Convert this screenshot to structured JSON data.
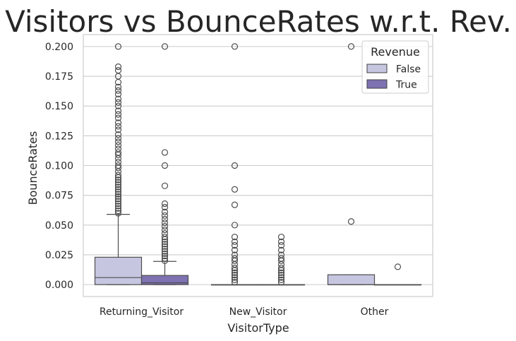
{
  "chart_data": {
    "type": "box",
    "title": "Visitors vs BounceRates w.r.t. Rev.",
    "xlabel": "VisitorType",
    "ylabel": "BounceRates",
    "ylim": [
      -0.01,
      0.21
    ],
    "yticks": [
      "0.000",
      "0.025",
      "0.050",
      "0.075",
      "0.100",
      "0.125",
      "0.150",
      "0.175",
      "0.200"
    ],
    "categories": [
      "Returning_Visitor",
      "New_Visitor",
      "Other"
    ],
    "grid": true,
    "legend": {
      "title": "Revenue",
      "position": "top-right",
      "entries": [
        {
          "label": "False",
          "color": "#c6c6e1"
        },
        {
          "label": "True",
          "color": "#7e72b2"
        }
      ]
    },
    "series": [
      {
        "name": "False",
        "color": "#c6c6e1",
        "boxes": [
          {
            "category": "Returning_Visitor",
            "q1": 0.0,
            "median": 0.0059,
            "q3": 0.023,
            "whisker_low": 0.0,
            "whisker_high": 0.059,
            "outliers": [
              0.06,
              0.062,
              0.064,
              0.066,
              0.068,
              0.07,
              0.072,
              0.074,
              0.076,
              0.078,
              0.08,
              0.082,
              0.084,
              0.086,
              0.088,
              0.09,
              0.092,
              0.095,
              0.098,
              0.1,
              0.103,
              0.106,
              0.109,
              0.111,
              0.114,
              0.117,
              0.12,
              0.123,
              0.126,
              0.13,
              0.133,
              0.136,
              0.14,
              0.143,
              0.146,
              0.15,
              0.153,
              0.156,
              0.16,
              0.163,
              0.166,
              0.17,
              0.175,
              0.18,
              0.183,
              0.2
            ]
          },
          {
            "category": "New_Visitor",
            "q1": 0.0,
            "median": 0.0,
            "q3": 0.0,
            "whisker_low": 0.0,
            "whisker_high": 0.0,
            "outliers": [
              0.002,
              0.004,
              0.006,
              0.008,
              0.01,
              0.012,
              0.014,
              0.017,
              0.02,
              0.022,
              0.025,
              0.029,
              0.033,
              0.036,
              0.04,
              0.05,
              0.067,
              0.08,
              0.1,
              0.2
            ]
          },
          {
            "category": "Other",
            "q1": 0.0,
            "median": 0.0,
            "q3": 0.0083,
            "whisker_low": 0.0,
            "whisker_high": 0.0083,
            "outliers": [
              0.053,
              0.2
            ]
          }
        ]
      },
      {
        "name": "True",
        "color": "#7e72b2",
        "boxes": [
          {
            "category": "Returning_Visitor",
            "q1": 0.0,
            "median": 0.0015,
            "q3": 0.0077,
            "whisker_low": 0.0,
            "whisker_high": 0.0195,
            "outliers": [
              0.02,
              0.022,
              0.024,
              0.026,
              0.028,
              0.03,
              0.032,
              0.034,
              0.036,
              0.038,
              0.04,
              0.043,
              0.046,
              0.049,
              0.052,
              0.055,
              0.058,
              0.061,
              0.065,
              0.068,
              0.083,
              0.1,
              0.111,
              0.2
            ]
          },
          {
            "category": "New_Visitor",
            "q1": 0.0,
            "median": 0.0,
            "q3": 0.0,
            "whisker_low": 0.0,
            "whisker_high": 0.0,
            "outliers": [
              0.002,
              0.004,
              0.006,
              0.008,
              0.01,
              0.012,
              0.014,
              0.017,
              0.02,
              0.022,
              0.025,
              0.029,
              0.033,
              0.036,
              0.04
            ]
          },
          {
            "category": "Other",
            "q1": 0.0,
            "median": 0.0,
            "q3": 0.0,
            "whisker_low": 0.0,
            "whisker_high": 0.0,
            "outliers": [
              0.015
            ]
          }
        ]
      }
    ]
  }
}
